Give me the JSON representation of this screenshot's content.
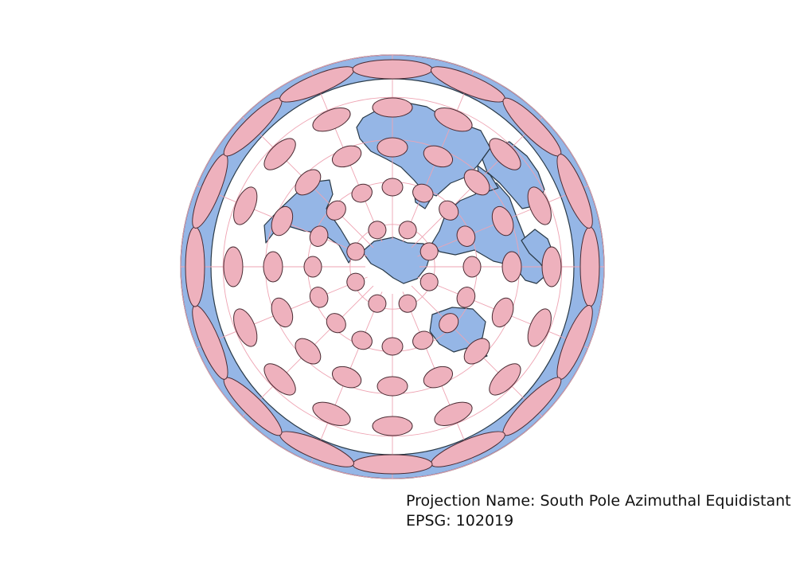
{
  "map": {
    "projection_label": "Projection Name: South Pole Azimuthal Equidistant",
    "epsg_label": "EPSG: 102019",
    "colors": {
      "land": "#95b6e6",
      "land_stroke": "#2a3a48",
      "ocean": "#ffffff",
      "graticule": "#eea3b2",
      "indicatrix_fill": "#eeb1bd",
      "indicatrix_stroke": "#4a2b33"
    },
    "projection": "South Pole Azimuthal Equidistant",
    "graticule": true,
    "tissot_indicatrices": true
  }
}
